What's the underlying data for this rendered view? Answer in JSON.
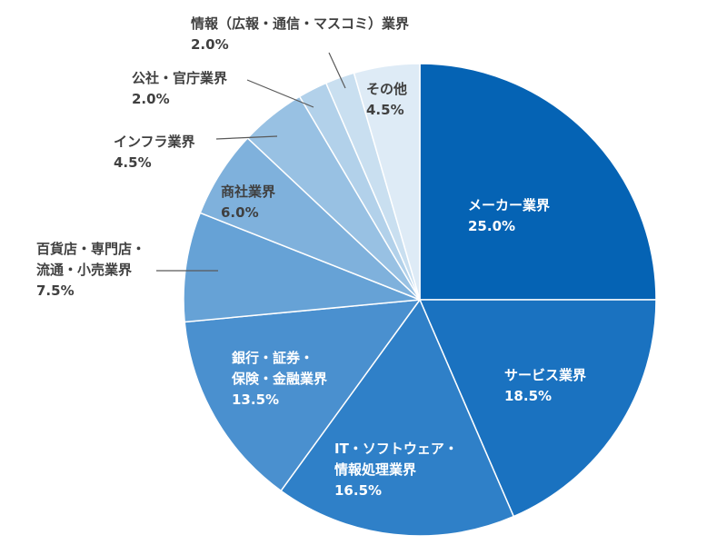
{
  "chart_data": {
    "type": "pie",
    "categories": [
      "メーカー業界",
      "サービス業界",
      "IT・ソフトウェア・\n情報処理業界",
      "銀行・証券・\n保険・金融業界",
      "百貨店・専門店・\n流通・小売業界",
      "商社業界",
      "インフラ業界",
      "公社・官庁業界",
      "情報（広報・通信・マスコミ）業界",
      "その他"
    ],
    "values": [
      25.0,
      18.5,
      16.5,
      13.5,
      7.5,
      6.0,
      4.5,
      2.0,
      2.0,
      4.5
    ],
    "value_labels": [
      "25.0%",
      "18.5%",
      "16.5%",
      "13.5%",
      "7.5%",
      "6.0%",
      "4.5%",
      "2.0%",
      "2.0%",
      "4.5%"
    ],
    "colors": [
      "#0563b4",
      "#1a72c0",
      "#2f80c8",
      "#4a90cf",
      "#66a2d6",
      "#7fb1dc",
      "#98c1e3",
      "#b2d1ea",
      "#c9dff0",
      "#deebf6"
    ]
  }
}
